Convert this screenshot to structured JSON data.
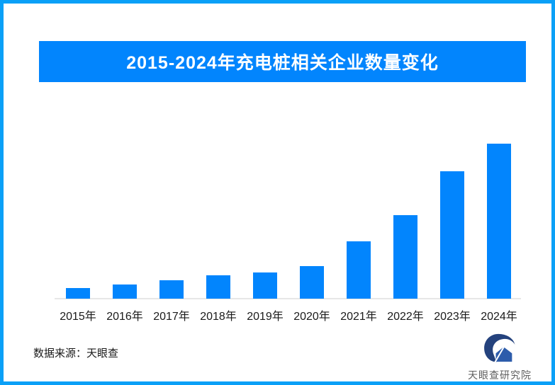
{
  "title_banner": {
    "text": "2015-2024年充电桩相关企业数量变化",
    "bg": "#0285fd",
    "text_color": "#ffffff"
  },
  "page": {
    "bg": "#ffffff",
    "frame_border_color": "#0aa0f7"
  },
  "chart_data": {
    "type": "bar",
    "title": "2015-2024年充电桩相关企业数量变化",
    "categories": [
      "2015年",
      "2016年",
      "2017年",
      "2018年",
      "2019年",
      "2020年",
      "2021年",
      "2022年",
      "2023年",
      "2024年"
    ],
    "values_relative": [
      7,
      9,
      12,
      15,
      17,
      21,
      37,
      54,
      82,
      100
    ],
    "values_unit": "relative height (2024 = 100); no numeric labels or y-axis shown in chart",
    "xlabel": "",
    "ylabel": "",
    "ylim": [
      0,
      100
    ],
    "grid": false,
    "legend": "none",
    "bar_color": "#0285fd",
    "axis_line_color": "#e7e7e7",
    "label_color": "#1a1a1a"
  },
  "footer": {
    "source_label": "数据来源：天眼查"
  },
  "logo": {
    "text": "天眼查研究院",
    "swoosh_color": "#24427d",
    "house_color": "#2d5cab",
    "text_color": "#5f5f5f"
  }
}
